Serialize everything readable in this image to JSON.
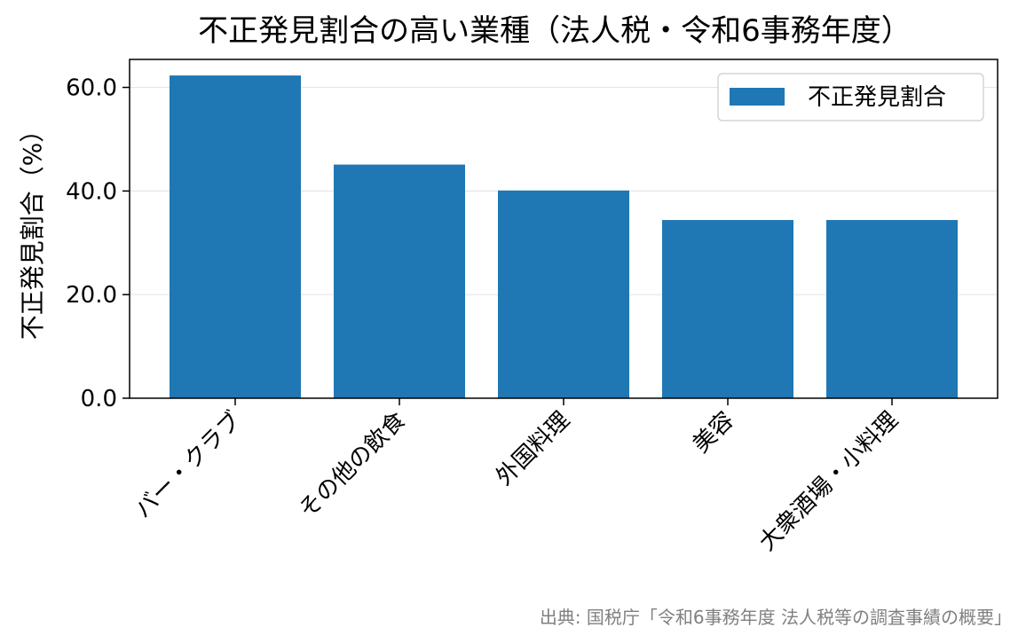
{
  "chart_data": {
    "type": "bar",
    "title": "不正発見割合の高い業種（法人税・令和6事務年度）",
    "xlabel": "",
    "ylabel": "不正発見割合（%）",
    "categories": [
      "バー・クラブ",
      "その他の飲食",
      "外国料理",
      "美容",
      "大衆酒場・小料理"
    ],
    "series": [
      {
        "name": "不正発見割合",
        "values": [
          62.3,
          45.1,
          40.1,
          34.4,
          34.4
        ],
        "color": "#1f77b4"
      }
    ],
    "yticks": [
      0,
      20,
      40,
      60
    ],
    "ytick_labels": [
      "0.0",
      "20.0",
      "40.0",
      "60.0"
    ],
    "ylim": [
      0,
      65.4
    ],
    "grid": "y",
    "legend_position": "top-right",
    "source_note": "出典: 国税庁「令和6事務年度 法人税等の調査事績の概要」"
  }
}
